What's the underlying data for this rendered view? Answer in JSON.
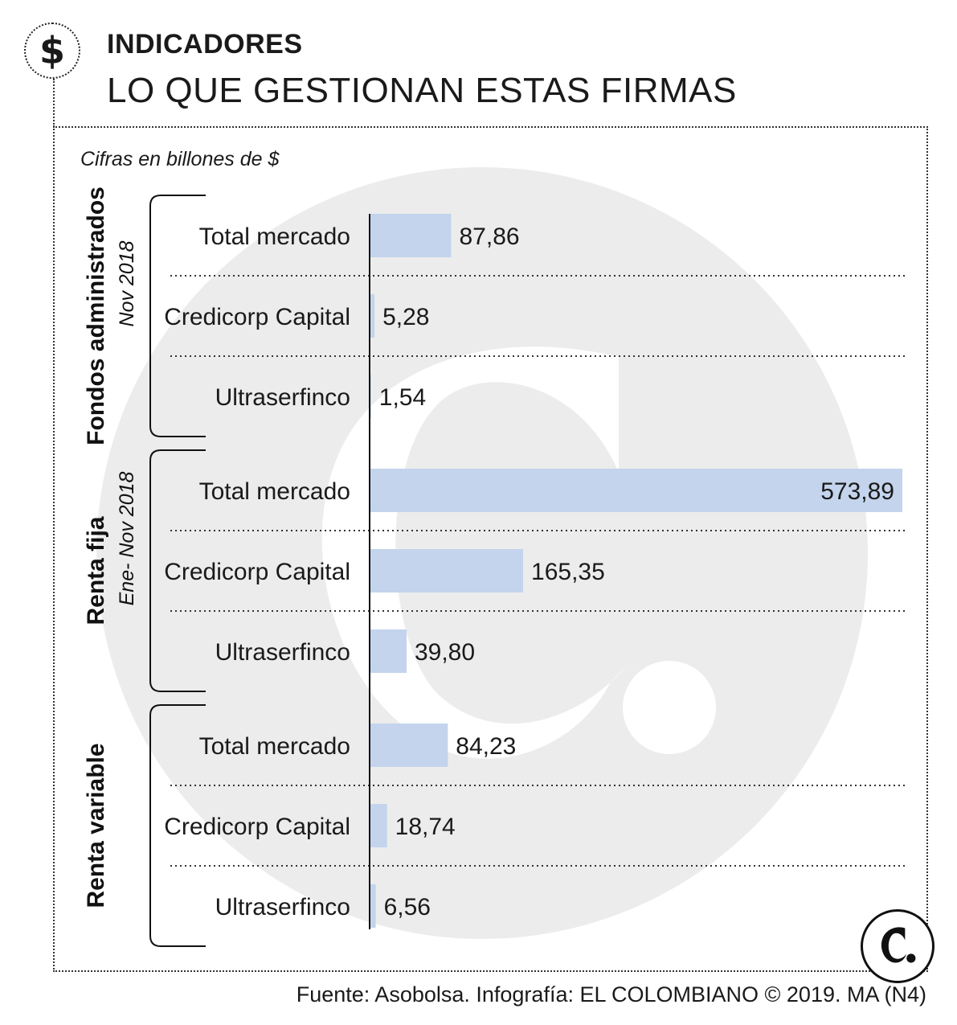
{
  "header": {
    "icon": "dollar-icon",
    "icon_glyph": "$",
    "kicker": "INDICADORES",
    "title": "LO QUE GESTIONAN ESTAS FIRMAS"
  },
  "units_note": "Cifras en billones de $",
  "source": "Fuente: Asobolsa. Infografía: EL COLOMBIANO © 2019. MA (N4)",
  "colors": {
    "bar": "#c3d4ec",
    "bar_dark": "#b4c4dc",
    "watermark": "#ececec"
  },
  "chart_data": {
    "type": "bar",
    "orientation": "horizontal",
    "xlim": [
      0,
      573.89
    ],
    "grid": false,
    "groups": [
      {
        "name": "Fondos administrados",
        "period": "Nov 2018",
        "categories": [
          "Total mercado",
          "Credicorp Capital",
          "Ultraserfinco"
        ],
        "values": [
          87.86,
          5.28,
          1.54
        ],
        "labels": [
          "87,86",
          "5,28",
          "1,54"
        ]
      },
      {
        "name": "Renta fija",
        "period": "Ene- Nov 2018",
        "categories": [
          "Total mercado",
          "Credicorp Capital",
          "Ultraserfinco"
        ],
        "values": [
          573.89,
          165.35,
          39.8
        ],
        "labels": [
          "573,89",
          "165,35",
          "39,80"
        ]
      },
      {
        "name": "Renta variable",
        "period": "",
        "categories": [
          "Total mercado",
          "Credicorp Capital",
          "Ultraserfinco"
        ],
        "values": [
          84.23,
          18.74,
          6.56
        ],
        "labels": [
          "84,23",
          "18,74",
          "6,56"
        ]
      }
    ]
  }
}
